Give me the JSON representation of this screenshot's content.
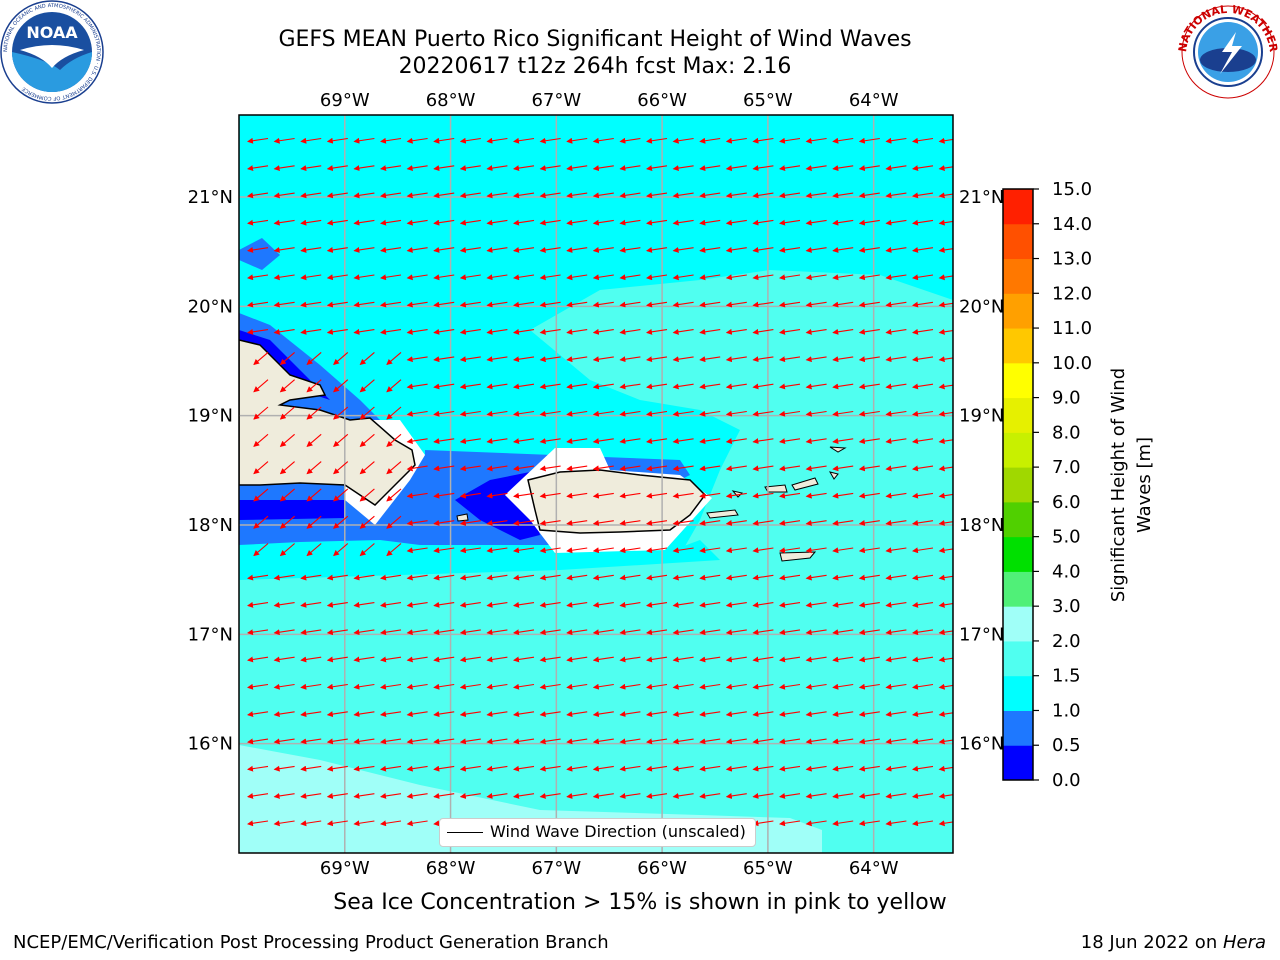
{
  "header": {
    "title_line1": "GEFS MEAN Puerto Rico Significant Height of Wind Waves",
    "title_line2": "20220617 t12z 264h fcst   Max: 2.16"
  },
  "logos": {
    "noaa_text": "NOAA",
    "noaa_ring_text": "NATIONAL OCEANIC AND ATMOSPHERIC ADMINISTRATION · U.S. DEPARTMENT OF COMMERCE",
    "nws_ring_text": "NATIONAL WEATHER SERVICE"
  },
  "map": {
    "lon_ticks": [
      "69°W",
      "68°W",
      "67°W",
      "66°W",
      "65°W",
      "64°W"
    ],
    "lat_ticks": [
      "21°N",
      "20°N",
      "19°N",
      "18°N",
      "17°N",
      "16°N"
    ],
    "lon_values": [
      -69,
      -68,
      -67,
      -66,
      -65,
      -64
    ],
    "lat_values": [
      21,
      20,
      19,
      18,
      17,
      16
    ],
    "extent": {
      "lon_min": -70.0,
      "lon_max": -63.25,
      "lat_min": 15.0,
      "lat_max": 21.75
    },
    "legend_label": "Wind Wave Direction (unscaled)",
    "arrow_color": "#ff0000",
    "land_color": "#efecdc",
    "grid_color": "#b0b0b0"
  },
  "colorbar": {
    "label": "Significant Height of Wind Waves [m]",
    "tick_labels": [
      "0.0",
      "0.5",
      "1.0",
      "1.5",
      "2.0",
      "3.0",
      "4.0",
      "5.0",
      "6.0",
      "7.0",
      "8.0",
      "9.0",
      "10.0",
      "11.0",
      "12.0",
      "13.0",
      "14.0",
      "15.0"
    ],
    "colors": [
      "#0000ff",
      "#1e78ff",
      "#00ffff",
      "#50fff0",
      "#a0fff8",
      "#50f078",
      "#00e000",
      "#50d000",
      "#a0d800",
      "#c8f000",
      "#e6f000",
      "#ffff00",
      "#ffc800",
      "#ffa000",
      "#ff7800",
      "#ff5000",
      "#ff2000"
    ]
  },
  "footer": {
    "ice_note": "Sea Ice Concentration > 15% is shown in pink to yellow",
    "left": "NCEP/EMC/Verification Post Processing Product Generation Branch",
    "right_prefix": "18 Jun 2022 on ",
    "right_host": "Hera"
  }
}
